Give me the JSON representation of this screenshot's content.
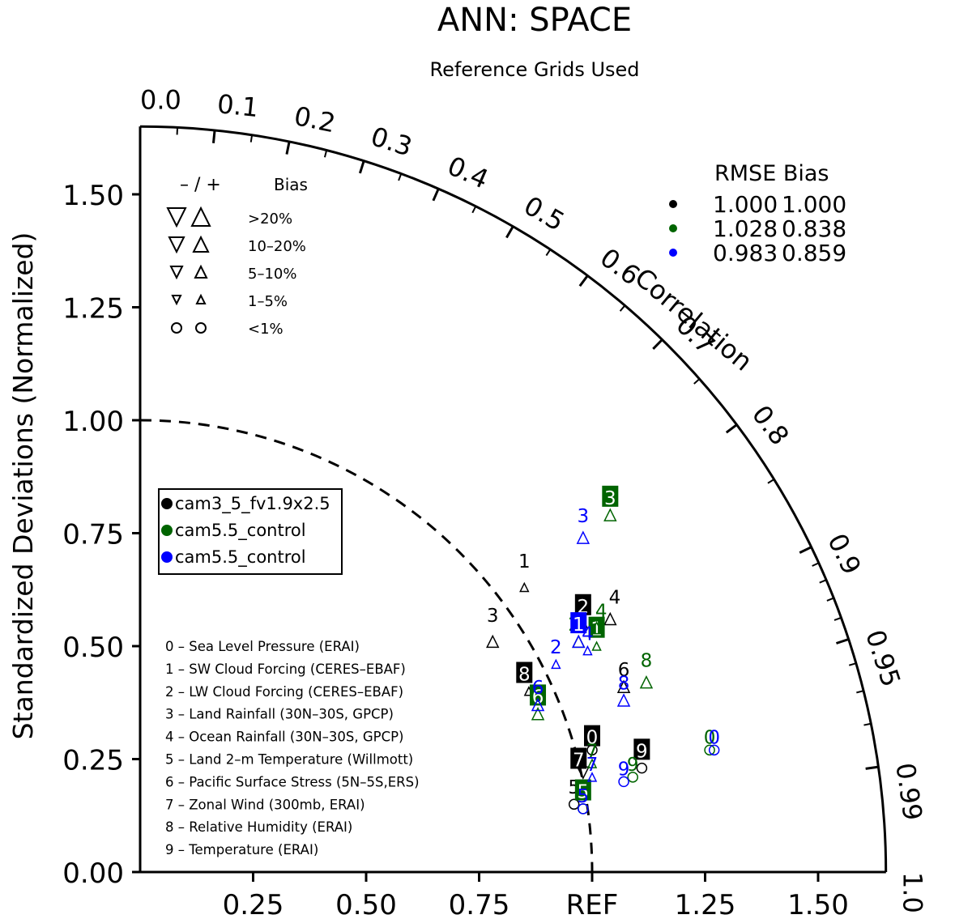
{
  "chart_data": {
    "type": "taylor",
    "title": "ANN: SPACE",
    "subtitle": "Reference Grids Used",
    "ylabel": "Standardized Deviations (Normalized)",
    "correlation_label": "Correlation",
    "ref_label": "REF",
    "std_range": [
      0,
      1.65
    ],
    "y_ticks": [
      {
        "value": 0.0,
        "label": "0.00"
      },
      {
        "value": 0.25,
        "label": "0.25"
      },
      {
        "value": 0.5,
        "label": "0.50"
      },
      {
        "value": 0.75,
        "label": "0.75"
      },
      {
        "value": 1.0,
        "label": "1.00"
      },
      {
        "value": 1.25,
        "label": "1.25"
      },
      {
        "value": 1.5,
        "label": "1.50"
      }
    ],
    "x_ticks": [
      {
        "value": 0.25,
        "label": "0.25"
      },
      {
        "value": 0.5,
        "label": "0.50"
      },
      {
        "value": 0.75,
        "label": "0.75"
      },
      {
        "value": 1.0,
        "label": "REF"
      },
      {
        "value": 1.25,
        "label": "1.25"
      },
      {
        "value": 1.5,
        "label": "1.50"
      }
    ],
    "correlation_ticks": [
      {
        "value": 0.0,
        "label": "0.0"
      },
      {
        "value": 0.1,
        "label": "0.1"
      },
      {
        "value": 0.2,
        "label": "0.2"
      },
      {
        "value": 0.3,
        "label": "0.3"
      },
      {
        "value": 0.4,
        "label": "0.4"
      },
      {
        "value": 0.5,
        "label": "0.5"
      },
      {
        "value": 0.6,
        "label": "0.6"
      },
      {
        "value": 0.7,
        "label": "0.7"
      },
      {
        "value": 0.8,
        "label": "0.8"
      },
      {
        "value": 0.9,
        "label": "0.9"
      },
      {
        "value": 0.95,
        "label": "0.95"
      },
      {
        "value": 0.99,
        "label": "0.99"
      },
      {
        "value": 1.0,
        "label": "1.0"
      }
    ],
    "minor_correlation_ticks": [
      0.05,
      0.15,
      0.25,
      0.35,
      0.45,
      0.55,
      0.65,
      0.75,
      0.85,
      0.91,
      0.92,
      0.93,
      0.94,
      0.96,
      0.97,
      0.98
    ],
    "series": [
      {
        "name": "cam3_5_fv1.9x2.5",
        "color": "#000000",
        "rmse": "1.000",
        "bias": "1.000",
        "points": [
          {
            "id": "0",
            "x": 1.0,
            "y": 0.27,
            "label_dx": 0.0,
            "label_dy": 0.03,
            "boxed": true,
            "marker": "circle"
          },
          {
            "id": "1",
            "x": 0.85,
            "y": 0.63,
            "label_dx": 0.0,
            "label_dy": 0.06,
            "boxed": false,
            "marker": "up-sm"
          },
          {
            "id": "2",
            "x": 0.98,
            "y": 0.55,
            "label_dx": 0.0,
            "label_dy": 0.04,
            "boxed": true,
            "marker": "up-sm"
          },
          {
            "id": "3",
            "x": 0.78,
            "y": 0.51,
            "label_dx": 0.0,
            "label_dy": 0.06,
            "boxed": false,
            "marker": "up"
          },
          {
            "id": "4",
            "x": 1.04,
            "y": 0.56,
            "label_dx": 0.01,
            "label_dy": 0.05,
            "boxed": false,
            "marker": "up"
          },
          {
            "id": "5",
            "x": 0.96,
            "y": 0.15,
            "label_dx": 0.0,
            "label_dy": 0.04,
            "boxed": false,
            "marker": "circle"
          },
          {
            "id": "6",
            "x": 1.07,
            "y": 0.41,
            "label_dx": 0.0,
            "label_dy": 0.04,
            "boxed": false,
            "marker": "up"
          },
          {
            "id": "7",
            "x": 0.98,
            "y": 0.22,
            "label_dx": -0.01,
            "label_dy": 0.03,
            "boxed": true,
            "marker": "down"
          },
          {
            "id": "8",
            "x": 0.86,
            "y": 0.4,
            "label_dx": -0.01,
            "label_dy": 0.04,
            "boxed": true,
            "marker": "up-sm"
          },
          {
            "id": "9",
            "x": 1.11,
            "y": 0.23,
            "label_dx": 0.0,
            "label_dy": 0.04,
            "boxed": true,
            "marker": "circle"
          }
        ]
      },
      {
        "name": "cam5.5_control",
        "color": "#006400",
        "rmse": "1.028",
        "bias": "0.838",
        "points": [
          {
            "id": "0",
            "x": 1.26,
            "y": 0.27,
            "label_dx": 0.0,
            "label_dy": 0.03,
            "boxed": false,
            "marker": "circle"
          },
          {
            "id": "1",
            "x": 1.01,
            "y": 0.5,
            "label_dx": 0.0,
            "label_dy": 0.04,
            "boxed": true,
            "marker": "up-sm"
          },
          {
            "id": "2",
            "x": 0.97,
            "y": 0.51,
            "label_dx": -0.01,
            "label_dy": 0.04,
            "boxed": false,
            "marker": "up"
          },
          {
            "id": "3",
            "x": 1.04,
            "y": 0.79,
            "label_dx": 0.0,
            "label_dy": 0.04,
            "boxed": true,
            "marker": "up"
          },
          {
            "id": "4",
            "x": 1.01,
            "y": 0.54,
            "label_dx": 0.01,
            "label_dy": 0.04,
            "boxed": false,
            "marker": "up"
          },
          {
            "id": "5",
            "x": 0.98,
            "y": 0.14,
            "label_dx": 0.0,
            "label_dy": 0.04,
            "boxed": true,
            "marker": "circle"
          },
          {
            "id": "6",
            "x": 0.88,
            "y": 0.35,
            "label_dx": 0.0,
            "label_dy": 0.04,
            "boxed": true,
            "marker": "up"
          },
          {
            "id": "7",
            "x": 1.0,
            "y": 0.24,
            "label_dx": 0.0,
            "label_dy": 0.03,
            "boxed": false,
            "marker": "up-sm"
          },
          {
            "id": "8",
            "x": 1.12,
            "y": 0.42,
            "label_dx": 0.0,
            "label_dy": 0.05,
            "boxed": false,
            "marker": "up"
          },
          {
            "id": "9",
            "x": 1.09,
            "y": 0.21,
            "label_dx": 0.0,
            "label_dy": 0.03,
            "boxed": false,
            "marker": "circle"
          }
        ]
      },
      {
        "name": "cam5.5_control",
        "color": "#0000ff",
        "rmse": "0.983",
        "bias": "0.859",
        "points": [
          {
            "id": "0",
            "x": 1.27,
            "y": 0.27,
            "label_dx": 0.0,
            "label_dy": 0.03,
            "boxed": false,
            "marker": "circle"
          },
          {
            "id": "1",
            "x": 0.97,
            "y": 0.51,
            "label_dx": 0.0,
            "label_dy": 0.04,
            "boxed": true,
            "marker": "up"
          },
          {
            "id": "2",
            "x": 0.92,
            "y": 0.46,
            "label_dx": 0.0,
            "label_dy": 0.04,
            "boxed": false,
            "marker": "up-sm"
          },
          {
            "id": "3",
            "x": 0.98,
            "y": 0.74,
            "label_dx": 0.0,
            "label_dy": 0.05,
            "boxed": false,
            "marker": "up"
          },
          {
            "id": "4",
            "x": 0.99,
            "y": 0.49,
            "label_dx": 0.0,
            "label_dy": 0.04,
            "boxed": false,
            "marker": "up-sm"
          },
          {
            "id": "5",
            "x": 0.98,
            "y": 0.14,
            "label_dx": 0.0,
            "label_dy": 0.03,
            "boxed": false,
            "marker": "circle"
          },
          {
            "id": "6",
            "x": 0.88,
            "y": 0.37,
            "label_dx": 0.0,
            "label_dy": 0.04,
            "boxed": false,
            "marker": "up"
          },
          {
            "id": "7",
            "x": 1.0,
            "y": 0.21,
            "label_dx": 0.0,
            "label_dy": 0.03,
            "boxed": false,
            "marker": "up-sm"
          },
          {
            "id": "8",
            "x": 1.07,
            "y": 0.38,
            "label_dx": 0.0,
            "label_dy": 0.04,
            "boxed": false,
            "marker": "up"
          },
          {
            "id": "9",
            "x": 1.07,
            "y": 0.2,
            "label_dx": 0.0,
            "label_dy": 0.03,
            "boxed": false,
            "marker": "circle"
          }
        ]
      }
    ],
    "rmse_header": "RMSE  Bias",
    "bias_legend": {
      "header_sym": "– / +",
      "header_label": "Bias",
      "rows": [
        {
          "label": ">20%",
          "size": "xl"
        },
        {
          "label": "10–20%",
          "size": "lg"
        },
        {
          "label": "5–10%",
          "size": "md"
        },
        {
          "label": "1–5%",
          "size": "sm"
        },
        {
          "label": "<1%",
          "size": "circle"
        }
      ]
    },
    "variables": [
      "0 – Sea Level Pressure (ERAI)",
      "1 – SW Cloud Forcing (CERES–EBAF)",
      "2 – LW Cloud Forcing (CERES–EBAF)",
      "3 – Land Rainfall (30N–30S, GPCP)",
      "4 – Ocean Rainfall (30N–30S, GPCP)",
      "5 – Land 2–m Temperature (Willmott)",
      "6 – Pacific Surface Stress (5N–5S,ERS)",
      "7 – Zonal Wind (300mb, ERAI)",
      "8 – Relative Humidity (ERAI)",
      "9 – Temperature (ERAI)"
    ]
  }
}
